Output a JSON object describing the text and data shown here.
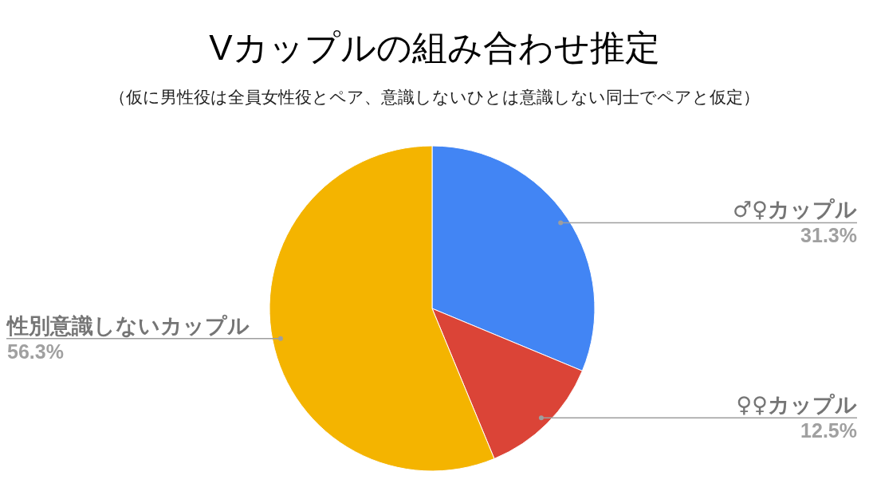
{
  "chart_data": {
    "type": "pie",
    "title": "Vカップルの組み合わせ推定",
    "subtitle": "（仮に男性役は全員女性役とペア、意識しないひとは意識しない同士でペアと仮定）",
    "categories": [
      "♂♀カップル",
      "♀♀カップル",
      "性別意識しないカップル"
    ],
    "values": [
      31.3,
      12.5,
      56.3
    ],
    "value_labels": [
      "31.3%",
      "12.5%",
      "56.3%"
    ],
    "colors": [
      "#4285f4",
      "#db4437",
      "#f4b400"
    ]
  }
}
